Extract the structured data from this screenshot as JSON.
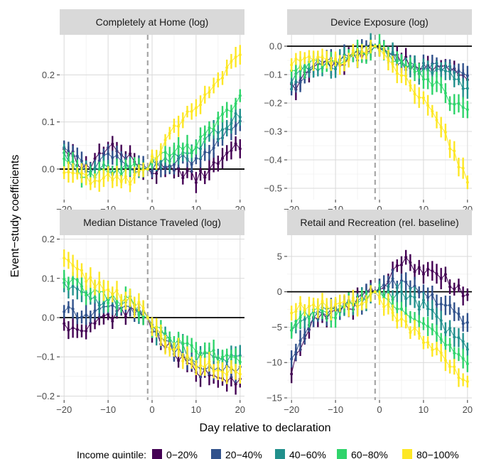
{
  "figure": {
    "ylabel": "Event−study coefficients",
    "xlabel": "Day relative to declaration",
    "legend_title": "Income quintile:"
  },
  "colors": {
    "0-20": "#440154",
    "20-40": "#31528c",
    "40-60": "#21908c",
    "60-80": "#2fd46b",
    "80-100": "#fde725",
    "strip_bg": "#d9d9d9",
    "grid": "#d9d9d9",
    "zero_line": "#000000",
    "vline": "#a6a6a6"
  },
  "legend": {
    "items": [
      "0−20%",
      "20−40%",
      "40−60%",
      "60−80%",
      "80−100%"
    ]
  },
  "chart_data": [
    {
      "type": "line",
      "title": "Completely at Home (log)",
      "xlim": [
        -21,
        21
      ],
      "ylim": [
        -0.065,
        0.285
      ],
      "xticks": [
        -20,
        -10,
        0,
        10,
        20
      ],
      "xtick_labels": [
        "−20",
        "−10",
        "0",
        "10",
        "20"
      ],
      "yticks": [
        0,
        0.1,
        0.2
      ],
      "ytick_labels": [
        "0.0",
        "0.1",
        "0.2"
      ],
      "vline": -1,
      "series": [
        {
          "name": "0−20%",
          "x": [
            -20,
            -15,
            -10,
            -5,
            -1,
            0,
            5,
            10,
            15,
            20
          ],
          "y": [
            0.05,
            0.0,
            0.05,
            0.025,
            0.0,
            0.0,
            0.0,
            -0.02,
            0.01,
            0.05
          ]
        },
        {
          "name": "20−40%",
          "x": [
            -20,
            -15,
            -10,
            -5,
            -1,
            0,
            5,
            10,
            15,
            20
          ],
          "y": [
            0.04,
            0.0,
            0.03,
            0.01,
            0.0,
            0.0,
            0.02,
            0.02,
            0.06,
            0.09
          ]
        },
        {
          "name": "40−60%",
          "x": [
            -20,
            -15,
            -10,
            -5,
            -1,
            0,
            5,
            10,
            15,
            20
          ],
          "y": [
            0.03,
            -0.01,
            0.0,
            0.0,
            0.0,
            0.01,
            0.03,
            0.04,
            0.08,
            0.12
          ]
        },
        {
          "name": "60−80%",
          "x": [
            -20,
            -15,
            -10,
            -5,
            -1,
            0,
            5,
            10,
            15,
            20
          ],
          "y": [
            0.02,
            -0.02,
            -0.01,
            0.0,
            0.0,
            0.01,
            0.04,
            0.05,
            0.1,
            0.15
          ]
        },
        {
          "name": "80−100%",
          "x": [
            -20,
            -15,
            -10,
            -5,
            -1,
            0,
            5,
            10,
            15,
            20
          ],
          "y": [
            0.0,
            -0.02,
            -0.02,
            -0.03,
            0.0,
            0.02,
            0.08,
            0.13,
            0.18,
            0.25
          ]
        }
      ]
    },
    {
      "type": "line",
      "title": "Device Exposure (log)",
      "xlim": [
        -21,
        21
      ],
      "ylim": [
        -0.54,
        0.04
      ],
      "xticks": [
        -20,
        -10,
        0,
        10,
        20
      ],
      "xtick_labels": [
        "−20",
        "−10",
        "0",
        "10",
        "20"
      ],
      "yticks": [
        0,
        -0.1,
        -0.2,
        -0.3,
        -0.4,
        -0.5
      ],
      "ytick_labels": [
        "0.0",
        "−0.1",
        "−0.2",
        "−0.3",
        "−0.4",
        "−0.5"
      ],
      "vline": -1,
      "series": [
        {
          "name": "0−20%",
          "x": [
            -20,
            -15,
            -10,
            -5,
            -1,
            0,
            5,
            10,
            15,
            20
          ],
          "y": [
            -0.15,
            -0.08,
            -0.06,
            -0.03,
            0.0,
            0.0,
            -0.05,
            -0.08,
            -0.05,
            -0.13
          ]
        },
        {
          "name": "20−40%",
          "x": [
            -20,
            -15,
            -10,
            -5,
            -1,
            0,
            5,
            10,
            15,
            20
          ],
          "y": [
            -0.14,
            -0.07,
            -0.06,
            -0.03,
            0.0,
            0.0,
            -0.06,
            -0.08,
            -0.07,
            -0.12
          ]
        },
        {
          "name": "40−60%",
          "x": [
            -20,
            -15,
            -10,
            -5,
            -1,
            0,
            5,
            10,
            15,
            20
          ],
          "y": [
            -0.12,
            -0.07,
            -0.06,
            -0.03,
            0.0,
            -0.01,
            -0.06,
            -0.09,
            -0.1,
            -0.14
          ]
        },
        {
          "name": "60−80%",
          "x": [
            -20,
            -15,
            -10,
            -5,
            -1,
            0,
            5,
            10,
            15,
            20
          ],
          "y": [
            -0.1,
            -0.06,
            -0.06,
            -0.03,
            0.0,
            -0.01,
            -0.07,
            -0.1,
            -0.17,
            -0.24
          ]
        },
        {
          "name": "80−100%",
          "x": [
            -20,
            -15,
            -10,
            -5,
            -1,
            0,
            5,
            10,
            15,
            20
          ],
          "y": [
            -0.06,
            -0.05,
            -0.05,
            -0.03,
            0.0,
            -0.03,
            -0.1,
            -0.2,
            -0.32,
            -0.47
          ]
        }
      ]
    },
    {
      "type": "line",
      "title": "Median Distance Traveled (log)",
      "xlim": [
        -21,
        21
      ],
      "ylim": [
        -0.21,
        0.21
      ],
      "xticks": [
        -20,
        -10,
        0,
        10,
        20
      ],
      "xtick_labels": [
        "−20",
        "−10",
        "0",
        "10",
        "20"
      ],
      "yticks": [
        0.2,
        0.1,
        0,
        -0.1,
        -0.2
      ],
      "ytick_labels": [
        "0.2",
        "0.1",
        "0.0",
        "−0.1",
        "−0.2"
      ],
      "vline": -1,
      "series": [
        {
          "name": "0−20%",
          "x": [
            -20,
            -15,
            -10,
            -5,
            -1,
            0,
            5,
            10,
            15,
            20
          ],
          "y": [
            -0.02,
            -0.02,
            0.0,
            0.02,
            0.0,
            -0.03,
            -0.09,
            -0.14,
            -0.14,
            -0.16
          ]
        },
        {
          "name": "20−40%",
          "x": [
            -20,
            -15,
            -10,
            -5,
            -1,
            0,
            5,
            10,
            15,
            20
          ],
          "y": [
            0.02,
            0.0,
            0.02,
            0.03,
            0.0,
            -0.03,
            -0.08,
            -0.12,
            -0.12,
            -0.13
          ]
        },
        {
          "name": "40−60%",
          "x": [
            -20,
            -15,
            -10,
            -5,
            -1,
            0,
            5,
            10,
            15,
            20
          ],
          "y": [
            0.08,
            0.05,
            0.04,
            0.04,
            0.0,
            -0.02,
            -0.07,
            -0.1,
            -0.1,
            -0.1
          ]
        },
        {
          "name": "60−80%",
          "x": [
            -20,
            -15,
            -10,
            -5,
            -1,
            0,
            5,
            10,
            15,
            20
          ],
          "y": [
            0.1,
            0.07,
            0.05,
            0.04,
            0.0,
            -0.02,
            -0.06,
            -0.09,
            -0.1,
            -0.1
          ]
        },
        {
          "name": "80−100%",
          "x": [
            -20,
            -15,
            -10,
            -5,
            -1,
            0,
            5,
            10,
            15,
            20
          ],
          "y": [
            0.14,
            0.1,
            0.07,
            0.05,
            0.0,
            -0.03,
            -0.08,
            -0.12,
            -0.13,
            -0.14
          ]
        }
      ]
    },
    {
      "type": "line",
      "title": "Retail and Recreation (rel. baseline)",
      "xlim": [
        -21,
        21
      ],
      "ylim": [
        -15.3,
        8.0
      ],
      "xticks": [
        -20,
        -10,
        0,
        10,
        20
      ],
      "xtick_labels": [
        "−20",
        "−10",
        "0",
        "10",
        "20"
      ],
      "yticks": [
        5,
        0,
        -5,
        -10,
        -15
      ],
      "ytick_labels": [
        "5",
        "0",
        "−5",
        "−10",
        "−15"
      ],
      "vline": -1,
      "series": [
        {
          "name": "0−20%",
          "x": [
            -20,
            -15,
            -10,
            -5,
            -1,
            0,
            5,
            10,
            15,
            20
          ],
          "y": [
            -11.0,
            -3.0,
            -3.0,
            -1.5,
            0.0,
            0.5,
            4.5,
            3.0,
            2.0,
            -0.5
          ]
        },
        {
          "name": "20−40%",
          "x": [
            -20,
            -15,
            -10,
            -5,
            -1,
            0,
            5,
            10,
            15,
            20
          ],
          "y": [
            -9.0,
            -3.0,
            -2.5,
            -1.5,
            0.0,
            0.5,
            1.5,
            0.0,
            -2.0,
            -5.0
          ]
        },
        {
          "name": "40−60%",
          "x": [
            -20,
            -15,
            -10,
            -5,
            -1,
            0,
            5,
            10,
            15,
            20
          ],
          "y": [
            -6.0,
            -2.5,
            -2.5,
            -1.5,
            0.0,
            0.0,
            -0.5,
            -2.0,
            -5.0,
            -8.0
          ]
        },
        {
          "name": "60−80%",
          "x": [
            -20,
            -15,
            -10,
            -5,
            -1,
            0,
            5,
            10,
            15,
            20
          ],
          "y": [
            -5.0,
            -2.5,
            -3.0,
            -1.5,
            0.0,
            -0.5,
            -2.0,
            -4.0,
            -7.5,
            -10.5
          ]
        },
        {
          "name": "80−100%",
          "x": [
            -20,
            -15,
            -10,
            -5,
            -1,
            0,
            5,
            10,
            15,
            20
          ],
          "y": [
            -3.0,
            -1.5,
            -2.5,
            -1.5,
            0.0,
            -1.0,
            -4.0,
            -7.0,
            -10.0,
            -13.0
          ]
        }
      ]
    }
  ]
}
